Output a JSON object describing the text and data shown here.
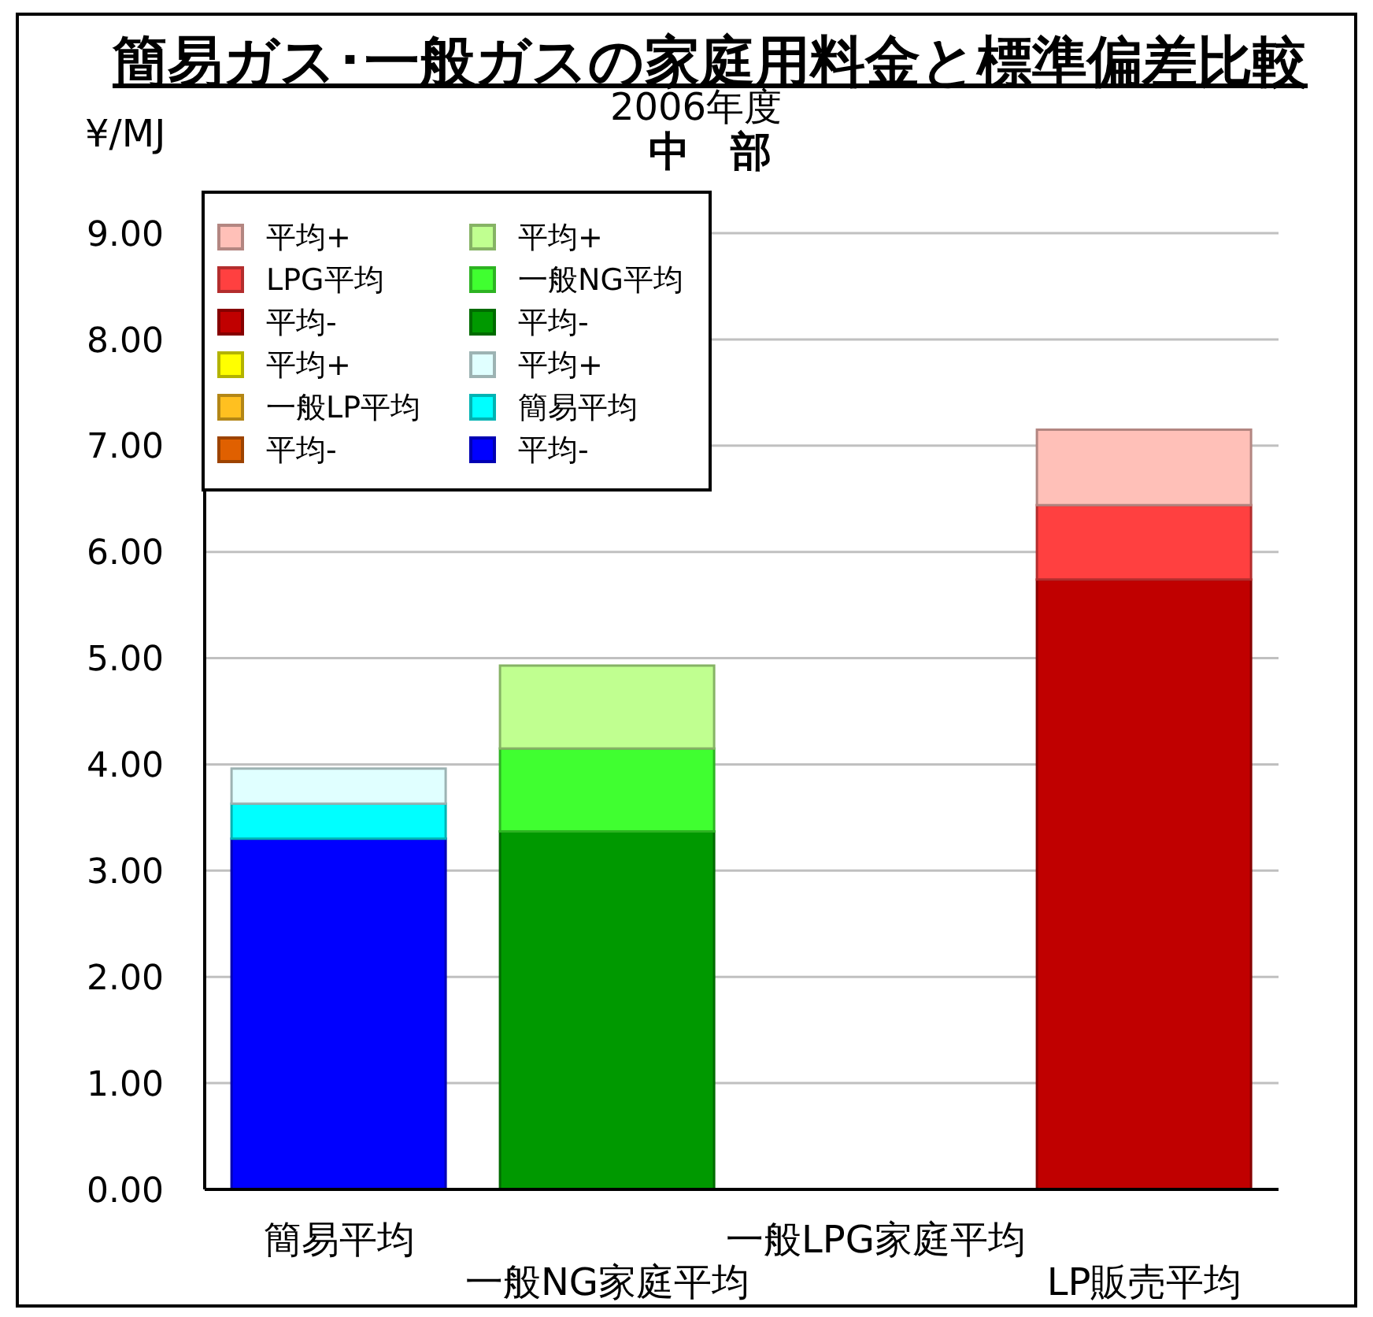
{
  "chart_data": {
    "type": "bar",
    "title": "簡易ガス･一般ガスの家庭用料金と標準偏差比較",
    "subtitle": "2006年度",
    "annotations": [
      "中　部"
    ],
    "ylabel": "¥/MJ",
    "categories": [
      "簡易平均",
      "一般NG家庭平均",
      "一般LPG家庭平均",
      "LP販売平均"
    ],
    "series": [
      {
        "name": "平均-",
        "color": "#0000ff",
        "values": [
          3.3,
          null,
          null,
          null
        ]
      },
      {
        "name": "簡易平均",
        "color": "#00ffff",
        "values": [
          0.33,
          null,
          null,
          null
        ]
      },
      {
        "name": "平均+",
        "color": "#e0ffff",
        "values": [
          0.33,
          null,
          null,
          null
        ]
      },
      {
        "name": "平均-",
        "color": "#009900",
        "values": [
          null,
          3.37,
          null,
          null
        ]
      },
      {
        "name": "一般NG平均",
        "color": "#40ff30",
        "values": [
          null,
          0.78,
          null,
          null
        ]
      },
      {
        "name": "平均+",
        "color": "#c0ff90",
        "values": [
          null,
          0.78,
          null,
          null
        ]
      },
      {
        "name": "平均-",
        "color": "#e06000",
        "values": [
          null,
          null,
          null,
          null
        ]
      },
      {
        "name": "一般LP平均",
        "color": "#ffc020",
        "values": [
          null,
          null,
          null,
          null
        ]
      },
      {
        "name": "平均+",
        "color": "#ffff00",
        "values": [
          null,
          null,
          null,
          null
        ]
      },
      {
        "name": "平均-",
        "color": "#c00000",
        "values": [
          null,
          null,
          null,
          5.74
        ]
      },
      {
        "name": "LPG平均",
        "color": "#ff4040",
        "values": [
          null,
          null,
          null,
          0.7
        ]
      },
      {
        "name": "平均+",
        "color": "#ffc0b8",
        "values": [
          null,
          null,
          null,
          0.71
        ]
      }
    ],
    "stacked": true,
    "ylim": [
      0,
      9
    ],
    "yticks": [
      {
        "value": 0,
        "label": "0.00"
      },
      {
        "value": 1,
        "label": "1.00"
      },
      {
        "value": 2,
        "label": "2.00"
      },
      {
        "value": 3,
        "label": "3.00"
      },
      {
        "value": 4,
        "label": "4.00"
      },
      {
        "value": 5,
        "label": "5.00"
      },
      {
        "value": 6,
        "label": "6.00"
      },
      {
        "value": 7,
        "label": "7.00"
      },
      {
        "value": 8,
        "label": "8.00"
      },
      {
        "value": 9,
        "label": "9.00"
      }
    ],
    "grid": "y",
    "legend": "top left"
  }
}
